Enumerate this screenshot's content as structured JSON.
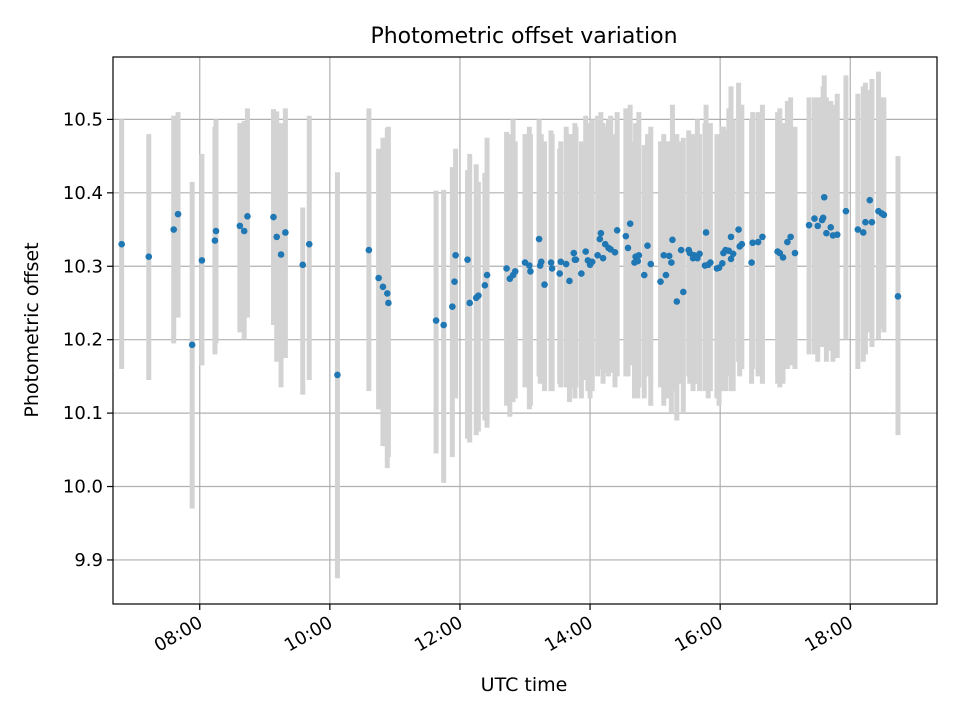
{
  "chart_data": {
    "type": "scatter",
    "title": "Photometric offset variation",
    "xlabel": "UTC time",
    "ylabel": "Photometric offset",
    "x_unit": "hours (UTC)",
    "xlim": [
      "06:40",
      "19:20"
    ],
    "ylim": [
      9.84,
      10.585
    ],
    "xticks": [
      "08:00",
      "10:00",
      "12:00",
      "14:00",
      "16:00",
      "18:00"
    ],
    "yticks": [
      "9.9",
      "10.0",
      "10.1",
      "10.2",
      "10.3",
      "10.4",
      "10.5"
    ],
    "grid": true,
    "legend": "none",
    "colors": {
      "points": "#1f77b4",
      "errorbars": "#d3d3d3",
      "grid": "#b0b0b0"
    },
    "series": [
      {
        "x": [
          "06:48",
          "07:13",
          "07:36",
          "07:40",
          "07:53",
          "08:02",
          "08:14",
          "08:15",
          "08:37",
          "08:41",
          "08:44",
          "09:08",
          "09:11",
          "09:15",
          "09:19",
          "09:35",
          "09:41",
          "10:07",
          "10:36",
          "10:45",
          "10:49",
          "10:53",
          "10:54",
          "11:38",
          "11:45",
          "11:53",
          "11:55",
          "11:56",
          "12:07",
          "12:09",
          "12:15",
          "12:17",
          "12:23",
          "12:25",
          "12:43",
          "12:46",
          "12:49",
          "12:51",
          "13:00",
          "13:04",
          "13:05",
          "13:13",
          "13:14",
          "13:15",
          "13:18",
          "13:24",
          "13:25",
          "13:32",
          "13:33",
          "13:38",
          "13:41",
          "13:45",
          "13:46",
          "13:47",
          "13:52",
          "13:56",
          "13:58",
          "14:00",
          "14:02",
          "14:07",
          "14:09",
          "14:10",
          "14:12",
          "14:14",
          "14:17",
          "14:19",
          "14:23",
          "14:25",
          "14:33",
          "14:35",
          "14:37",
          "14:41",
          "14:42",
          "14:44",
          "14:45",
          "14:50",
          "14:53",
          "14:56",
          "15:05",
          "15:08",
          "15:10",
          "15:13",
          "15:15",
          "15:16",
          "15:20",
          "15:24",
          "15:26",
          "15:31",
          "15:32",
          "15:35",
          "15:36",
          "15:39",
          "15:41",
          "15:46",
          "15:47",
          "15:49",
          "15:51",
          "15:57",
          "15:59",
          "16:02",
          "16:03",
          "16:05",
          "16:08",
          "16:10",
          "16:10",
          "16:12",
          "16:17",
          "16:18",
          "16:20",
          "16:29",
          "16:30",
          "16:35",
          "16:39",
          "16:53",
          "16:55",
          "16:58",
          "17:02",
          "17:05",
          "17:09",
          "17:22",
          "17:27",
          "17:30",
          "17:34",
          "17:35",
          "17:36",
          "17:38",
          "17:42",
          "17:44",
          "17:48",
          "17:56",
          "18:07",
          "18:12",
          "18:14",
          "18:18",
          "18:20",
          "18:26",
          "18:29",
          "18:31",
          "18:44"
        ],
        "y": [
          10.33,
          10.313,
          10.35,
          10.371,
          10.193,
          10.308,
          10.335,
          10.348,
          10.355,
          10.348,
          10.368,
          10.367,
          10.34,
          10.316,
          10.346,
          10.302,
          10.33,
          10.152,
          10.322,
          10.284,
          10.272,
          10.263,
          10.25,
          10.226,
          10.22,
          10.245,
          10.279,
          10.315,
          10.309,
          10.25,
          10.257,
          10.26,
          10.274,
          10.288,
          10.297,
          10.283,
          10.288,
          10.293,
          10.305,
          10.301,
          10.293,
          10.337,
          10.301,
          10.306,
          10.275,
          10.305,
          10.297,
          10.29,
          10.306,
          10.303,
          10.28,
          10.318,
          10.309,
          10.309,
          10.29,
          10.32,
          10.308,
          10.302,
          10.306,
          10.315,
          10.337,
          10.345,
          10.311,
          10.33,
          10.325,
          10.323,
          10.319,
          10.349,
          10.341,
          10.325,
          10.358,
          10.305,
          10.313,
          10.307,
          10.315,
          10.288,
          10.328,
          10.303,
          10.279,
          10.315,
          10.288,
          10.314,
          10.305,
          10.336,
          10.252,
          10.322,
          10.265,
          10.322,
          10.318,
          10.311,
          10.315,
          10.311,
          10.317,
          10.301,
          10.346,
          10.302,
          10.305,
          10.297,
          10.298,
          10.304,
          10.318,
          10.322,
          10.321,
          10.31,
          10.34,
          10.317,
          10.35,
          10.327,
          10.33,
          10.305,
          10.332,
          10.333,
          10.34,
          10.32,
          10.318,
          10.312,
          10.333,
          10.34,
          10.318,
          10.356,
          10.365,
          10.355,
          10.363,
          10.366,
          10.394,
          10.345,
          10.353,
          10.342,
          10.343,
          10.375,
          10.35,
          10.346,
          10.36,
          10.39,
          10.36,
          10.375,
          10.372,
          10.37,
          10.259
        ]
      }
    ],
    "errorbar_ranges": [
      [
        10.16,
        10.5
      ],
      [
        10.145,
        10.48
      ],
      [
        10.195,
        10.505
      ],
      [
        10.23,
        10.51
      ],
      [
        9.97,
        10.415
      ],
      [
        10.165,
        10.453
      ],
      [
        10.18,
        10.49
      ],
      [
        10.195,
        10.5
      ],
      [
        10.21,
        10.495
      ],
      [
        10.2,
        10.498
      ],
      [
        10.23,
        10.515
      ],
      [
        10.22,
        10.514
      ],
      [
        10.17,
        10.511
      ],
      [
        10.135,
        10.495
      ],
      [
        10.175,
        10.515
      ],
      [
        10.125,
        10.38
      ],
      [
        10.145,
        10.505
      ],
      [
        9.875,
        10.428
      ],
      [
        10.13,
        10.515
      ],
      [
        10.105,
        10.46
      ],
      [
        10.055,
        10.475
      ],
      [
        10.025,
        10.488
      ],
      [
        10.04,
        10.49
      ],
      [
        10.045,
        10.403
      ],
      [
        10.005,
        10.404
      ],
      [
        10.04,
        10.435
      ],
      [
        10.135,
        10.433
      ],
      [
        10.12,
        10.46
      ],
      [
        10.065,
        10.431
      ],
      [
        10.06,
        10.453
      ],
      [
        10.07,
        10.439
      ],
      [
        10.075,
        10.415
      ],
      [
        10.09,
        10.427
      ],
      [
        10.08,
        10.475
      ],
      [
        10.11,
        10.483
      ],
      [
        10.095,
        10.48
      ],
      [
        10.115,
        10.5
      ],
      [
        10.12,
        10.47
      ],
      [
        10.135,
        10.48
      ],
      [
        10.105,
        10.49
      ],
      [
        10.11,
        10.48
      ],
      [
        10.15,
        10.5
      ],
      [
        10.14,
        10.47
      ],
      [
        10.155,
        10.48
      ],
      [
        10.13,
        10.47
      ],
      [
        10.13,
        10.485
      ],
      [
        10.13,
        10.48
      ],
      [
        10.14,
        10.46
      ],
      [
        10.135,
        10.47
      ],
      [
        10.135,
        10.49
      ],
      [
        10.115,
        10.48
      ],
      [
        10.135,
        10.48
      ],
      [
        10.12,
        10.495
      ],
      [
        10.135,
        10.49
      ],
      [
        10.12,
        10.47
      ],
      [
        10.145,
        10.505
      ],
      [
        10.13,
        10.48
      ],
      [
        10.12,
        10.495
      ],
      [
        10.13,
        10.5
      ],
      [
        10.15,
        10.505
      ],
      [
        10.16,
        10.505
      ],
      [
        10.17,
        10.51
      ],
      [
        10.14,
        10.495
      ],
      [
        10.155,
        10.49
      ],
      [
        10.15,
        10.5
      ],
      [
        10.155,
        10.505
      ],
      [
        10.135,
        10.48
      ],
      [
        10.15,
        10.51
      ],
      [
        10.15,
        10.515
      ],
      [
        10.15,
        10.49
      ],
      [
        10.165,
        10.52
      ],
      [
        10.12,
        10.47
      ],
      [
        10.135,
        10.495
      ],
      [
        10.12,
        10.49
      ],
      [
        10.135,
        10.51
      ],
      [
        10.12,
        10.465
      ],
      [
        10.15,
        10.48
      ],
      [
        10.11,
        10.49
      ],
      [
        10.135,
        10.47
      ],
      [
        10.11,
        10.48
      ],
      [
        10.12,
        10.47
      ],
      [
        10.12,
        10.47
      ],
      [
        10.1,
        10.47
      ],
      [
        10.13,
        10.52
      ],
      [
        10.09,
        10.48
      ],
      [
        10.14,
        10.47
      ],
      [
        10.1,
        10.475
      ],
      [
        10.15,
        10.485
      ],
      [
        10.14,
        10.465
      ],
      [
        10.13,
        10.48
      ],
      [
        10.14,
        10.475
      ],
      [
        10.14,
        10.5
      ],
      [
        10.13,
        10.48
      ],
      [
        10.13,
        10.495
      ],
      [
        10.165,
        10.52
      ],
      [
        10.12,
        10.49
      ],
      [
        10.13,
        10.495
      ],
      [
        10.12,
        10.48
      ],
      [
        10.11,
        10.475
      ],
      [
        10.13,
        10.49
      ],
      [
        10.14,
        10.49
      ],
      [
        10.13,
        10.485
      ],
      [
        10.15,
        10.515
      ],
      [
        10.13,
        10.505
      ],
      [
        10.16,
        10.545
      ],
      [
        10.13,
        10.5
      ],
      [
        10.17,
        10.55
      ],
      [
        10.15,
        10.52
      ],
      [
        10.16,
        10.52
      ],
      [
        10.14,
        10.5
      ],
      [
        10.16,
        10.51
      ],
      [
        10.15,
        10.51
      ],
      [
        10.14,
        10.52
      ],
      [
        10.14,
        10.51
      ],
      [
        10.135,
        10.515
      ],
      [
        10.14,
        10.495
      ],
      [
        10.16,
        10.525
      ],
      [
        10.165,
        10.53
      ],
      [
        10.16,
        10.49
      ],
      [
        10.18,
        10.53
      ],
      [
        10.18,
        10.53
      ],
      [
        10.17,
        10.53
      ],
      [
        10.19,
        10.53
      ],
      [
        10.19,
        10.545
      ],
      [
        10.21,
        10.56
      ],
      [
        10.17,
        10.53
      ],
      [
        10.185,
        10.525
      ],
      [
        10.17,
        10.52
      ],
      [
        10.175,
        10.535
      ],
      [
        10.2,
        10.56
      ],
      [
        10.16,
        10.535
      ],
      [
        10.17,
        10.545
      ],
      [
        10.18,
        10.55
      ],
      [
        10.21,
        10.54
      ],
      [
        10.19,
        10.555
      ],
      [
        10.2,
        10.565
      ],
      [
        10.215,
        10.53
      ],
      [
        10.21,
        10.53
      ],
      [
        10.07,
        10.45
      ]
    ]
  }
}
